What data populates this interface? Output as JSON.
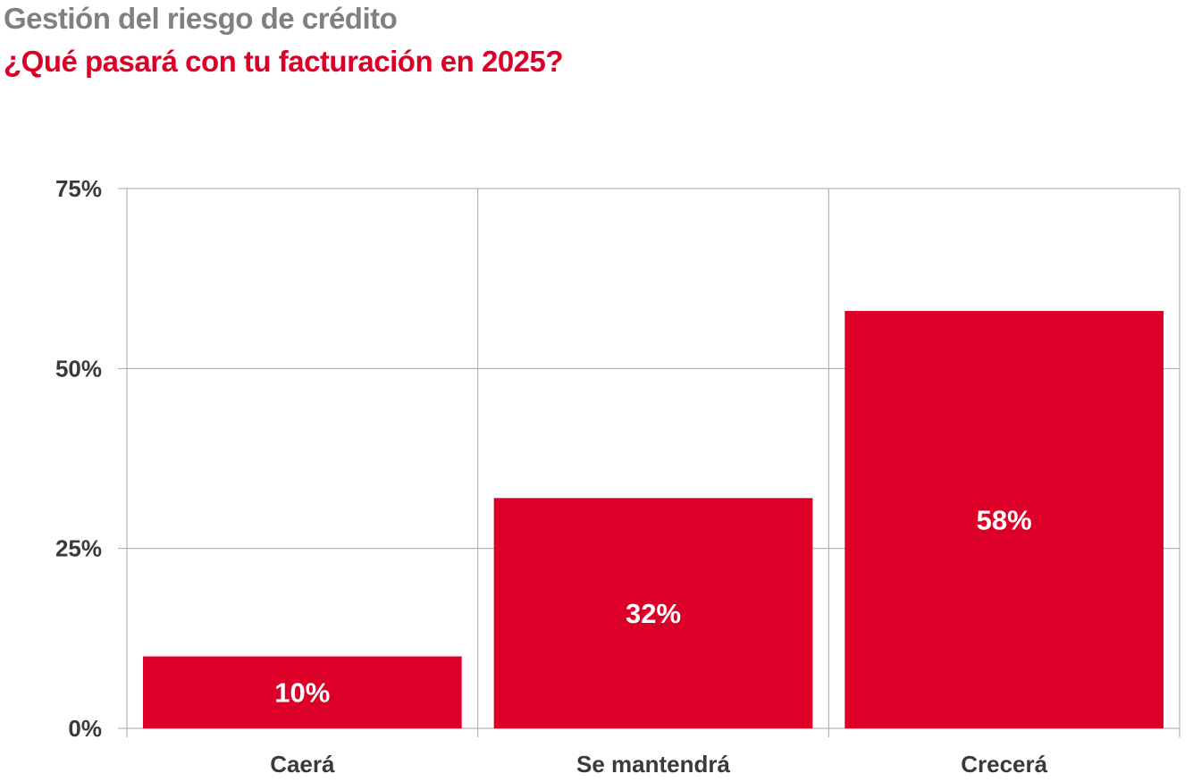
{
  "header": {
    "title": "Gestión del riesgo de crédito",
    "subtitle": "¿Qué pasará con tu facturación en 2025?"
  },
  "colors": {
    "bar": "#dc0028",
    "title": "#808080",
    "subtitle": "#dc0028",
    "grid": "#a6a6a6",
    "text": "#3a3a3a"
  },
  "chart_data": {
    "type": "bar",
    "title": "Gestión del riesgo de crédito",
    "subtitle": "¿Qué pasará con tu facturación en 2025?",
    "categories": [
      "Caerá",
      "Se mantendrá",
      "Crecerá"
    ],
    "values": [
      10,
      32,
      58
    ],
    "data_labels": [
      "10%",
      "32%",
      "58%"
    ],
    "yticks": [
      0,
      25,
      50,
      75
    ],
    "ytick_labels": [
      "0%",
      "25%",
      "50%",
      "75%"
    ],
    "ylim": [
      0,
      75
    ],
    "xlabel": "",
    "ylabel": "",
    "grid": true,
    "legend": "none"
  }
}
